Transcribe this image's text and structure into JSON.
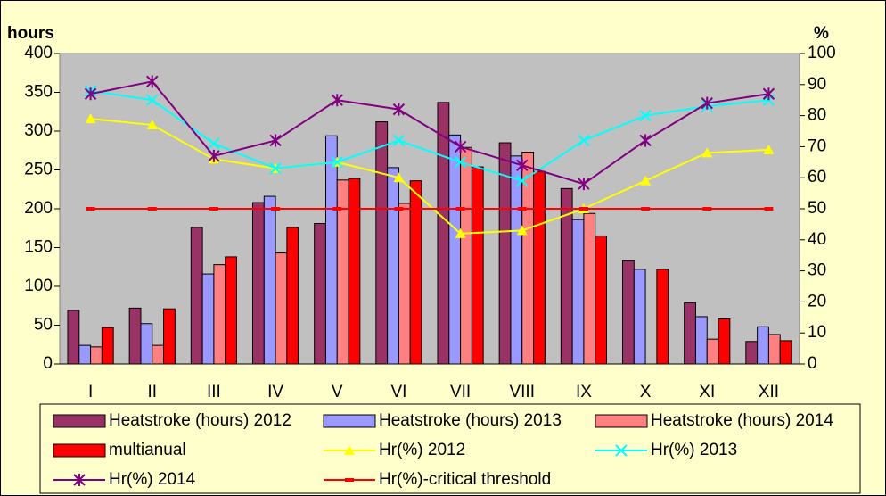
{
  "chart_data": {
    "type": "bar_line",
    "y_label": "hours",
    "y2_label": "%",
    "categories": [
      "I",
      "II",
      "III",
      "IV",
      "V",
      "VI",
      "VII",
      "VIII",
      "IX",
      "X",
      "XI",
      "XII"
    ],
    "ylim": [
      0,
      400
    ],
    "yticks": [
      0,
      50,
      100,
      150,
      200,
      250,
      300,
      350,
      400
    ],
    "y2lim": [
      0,
      100
    ],
    "y2ticks": [
      0,
      10,
      20,
      30,
      40,
      50,
      60,
      70,
      80,
      90,
      100
    ],
    "series": [
      {
        "name": "Heatstroke (hours) 2012",
        "type": "bar",
        "color": "#993366",
        "values": [
          69,
          72,
          176,
          208,
          181,
          312,
          337,
          285,
          226,
          133,
          79,
          29
        ]
      },
      {
        "name": "Heatstroke (hours) 2013",
        "type": "bar",
        "color": "#9999ff",
        "values": [
          24,
          52,
          116,
          216,
          294,
          253,
          295,
          268,
          186,
          122,
          61,
          48
        ]
      },
      {
        "name": "Heatstroke (hours) 2014",
        "type": "bar",
        "color": "#ff8080",
        "values": [
          22,
          24,
          128,
          143,
          237,
          207,
          279,
          273,
          194,
          null,
          32,
          38
        ]
      },
      {
        "name": "multianual",
        "type": "bar",
        "color": "#ff0000",
        "values": [
          47,
          71,
          138,
          176,
          239,
          236,
          254,
          248,
          165,
          122,
          58,
          30
        ]
      },
      {
        "name": "Hr(%) 2012",
        "type": "line",
        "axis": "y2",
        "marker": "triangle",
        "color": "#ffff00",
        "values": [
          79,
          77,
          66,
          63,
          65,
          60,
          42,
          43,
          50,
          59,
          68,
          69
        ]
      },
      {
        "name": "Hr(%) 2013",
        "type": "line",
        "axis": "y2",
        "marker": "x",
        "color": "#00ffff",
        "values": [
          88,
          85,
          71,
          63,
          65,
          72,
          65,
          59,
          72,
          80,
          83,
          85
        ]
      },
      {
        "name": "Hr(%) 2014",
        "type": "line",
        "axis": "y2",
        "marker": "star",
        "color": "#800080",
        "values": [
          87,
          91,
          67,
          72,
          85,
          82,
          70,
          64,
          58,
          72,
          84,
          87
        ]
      },
      {
        "name": "Hr(%)-critical threshold",
        "type": "line",
        "axis": "y2",
        "marker": "dash",
        "color": "#ff0000",
        "values": [
          50,
          50,
          50,
          50,
          50,
          50,
          50,
          50,
          50,
          50,
          50,
          50
        ]
      }
    ]
  }
}
